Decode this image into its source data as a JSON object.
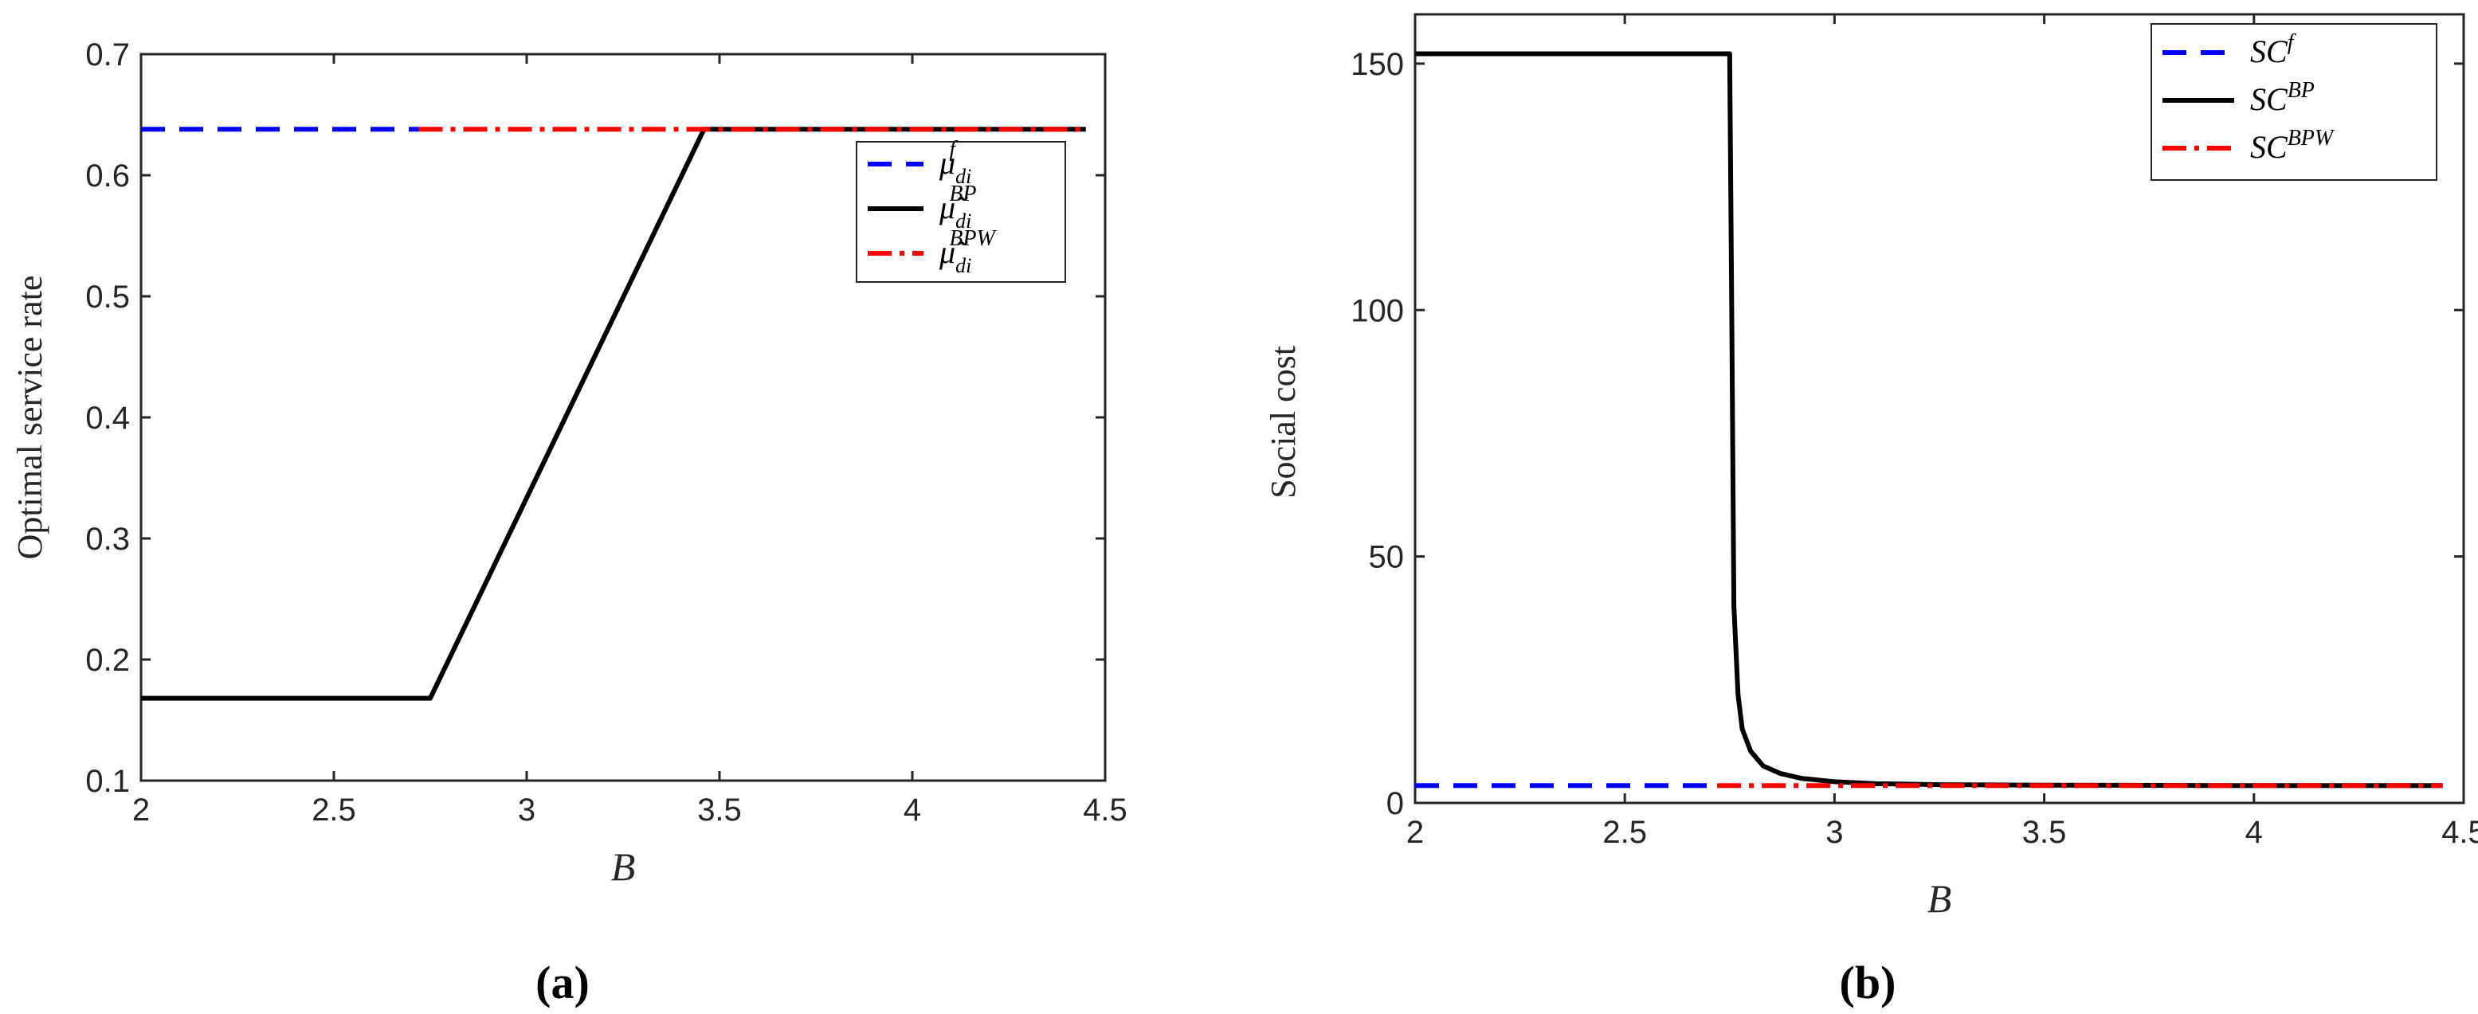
{
  "chart_data": [
    {
      "type": "line",
      "panel_label": "(a)",
      "xlabel": "B",
      "ylabel": "Optimal service rate",
      "xlim": [
        2,
        4.5
      ],
      "ylim": [
        0.1,
        0.7
      ],
      "xticks": [
        "2",
        "2.5",
        "3",
        "3.5",
        "4",
        "4.5"
      ],
      "yticks": [
        "0.1",
        "0.2",
        "0.3",
        "0.4",
        "0.5",
        "0.6",
        "0.7"
      ],
      "grid": false,
      "legend_position": "top-right",
      "series": [
        {
          "name": "μ_di^f",
          "legend": {
            "base": "μ",
            "sub": "di",
            "sup": "f",
            "tilde": false
          },
          "color": "#0000ff",
          "style": "dashed",
          "x": [
            2,
            2.72
          ],
          "y": [
            0.638,
            0.638
          ]
        },
        {
          "name": "μ̃_di^BP",
          "legend": {
            "base": "μ",
            "sub": "di",
            "sup": "BP",
            "tilde": true
          },
          "color": "#000000",
          "style": "solid",
          "x": [
            2,
            2.75,
            3.46,
            4.45
          ],
          "y": [
            0.168,
            0.168,
            0.638,
            0.638
          ]
        },
        {
          "name": "μ̃_di^BPW",
          "legend": {
            "base": "μ",
            "sub": "di",
            "sup": "BPW",
            "tilde": true
          },
          "color": "#ff0000",
          "style": "dashdot",
          "x": [
            2.72,
            4.45
          ],
          "y": [
            0.638,
            0.638
          ]
        }
      ]
    },
    {
      "type": "line",
      "panel_label": "(b)",
      "xlabel": "B",
      "ylabel": "Social cost",
      "xlim": [
        2,
        4.5
      ],
      "ylim": [
        0,
        160
      ],
      "xticks": [
        "2",
        "2.5",
        "3",
        "3.5",
        "4",
        "4.5"
      ],
      "yticks": [
        "0",
        "50",
        "100",
        "150"
      ],
      "grid": false,
      "legend_position": "top-right",
      "series": [
        {
          "name": "SC^f",
          "legend": {
            "base": "SC",
            "sup": "f"
          },
          "color": "#0000ff",
          "style": "dashed",
          "x": [
            2,
            2.72
          ],
          "y": [
            3.5,
            3.5
          ]
        },
        {
          "name": "SC^BP",
          "legend": {
            "base": "SC",
            "sup": "BP"
          },
          "color": "#000000",
          "style": "solid",
          "x": [
            2,
            2.75,
            2.755,
            2.76,
            2.77,
            2.78,
            2.8,
            2.83,
            2.87,
            2.92,
            3.0,
            3.1,
            3.25,
            3.5,
            4.0,
            4.45
          ],
          "y": [
            152,
            152,
            100,
            40,
            22,
            15,
            10.5,
            7.5,
            6,
            5,
            4.3,
            3.9,
            3.7,
            3.6,
            3.5,
            3.5
          ]
        },
        {
          "name": "SC^BPW",
          "legend": {
            "base": "SC",
            "sup": "BPW"
          },
          "color": "#ff0000",
          "style": "dashdot",
          "x": [
            2.72,
            4.45
          ],
          "y": [
            3.5,
            3.5
          ]
        }
      ]
    }
  ]
}
